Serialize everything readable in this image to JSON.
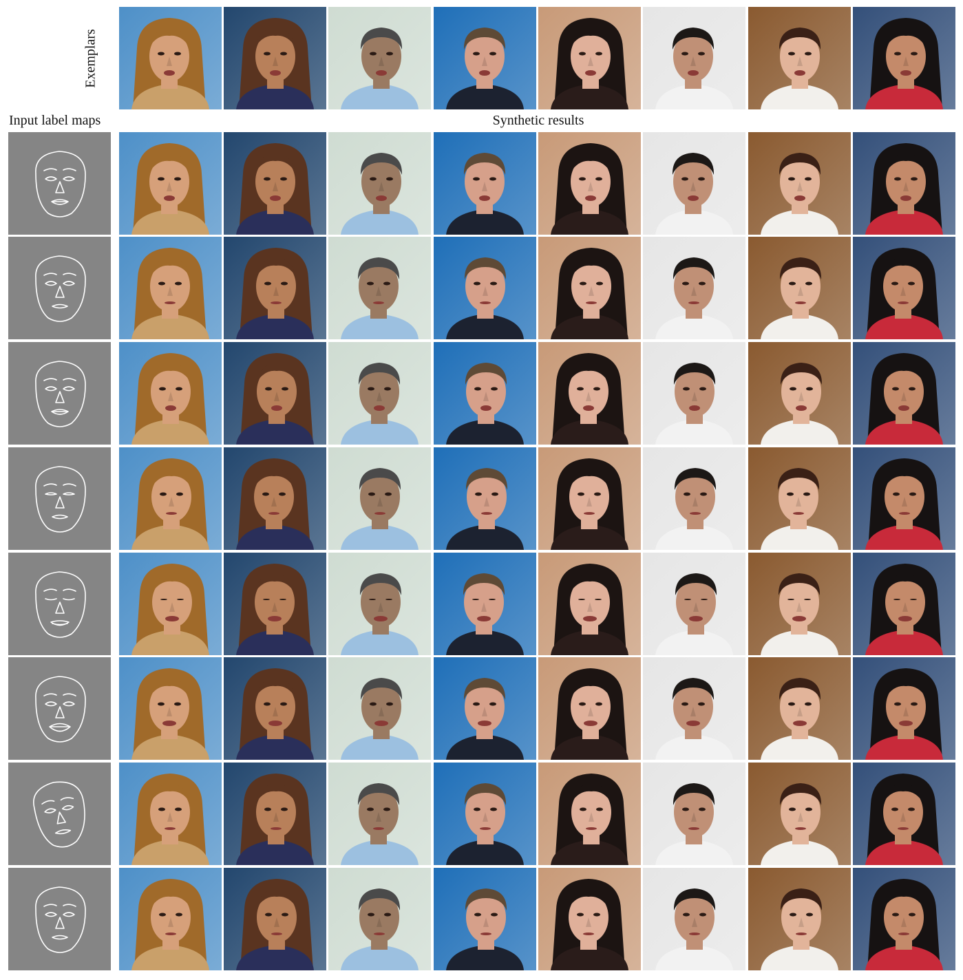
{
  "captions": {
    "exemplars": "Exemplars",
    "input_label_maps": "Input label maps",
    "synthetic_results": "Synthetic results"
  },
  "colors": {
    "label_map_background": "#858585",
    "label_map_stroke": "#ffffff",
    "figure_background": "#ffffff"
  },
  "identities": [
    {
      "id": "person-1",
      "bg": "#4e90c8",
      "skin": "#d6a07a",
      "hair": "#a06a2a",
      "clothes": "#c9a06a",
      "long_hair": true
    },
    {
      "id": "person-2",
      "bg": "#23476e",
      "skin": "#b8805a",
      "hair": "#5a3420",
      "clothes": "#2a2f5a",
      "long_hair": true
    },
    {
      "id": "person-3",
      "bg": "#cfdcd2",
      "skin": "#9a7a62",
      "hair": "#4a4a4a",
      "clothes": "#9cc0e0",
      "long_hair": false
    },
    {
      "id": "person-4",
      "bg": "#1f6fb8",
      "skin": "#d6a08a",
      "hair": "#5e4a36",
      "clothes": "#1c2230",
      "long_hair": false
    },
    {
      "id": "person-5",
      "bg": "#c89a78",
      "skin": "#e0b09a",
      "hair": "#1c1412",
      "clothes": "#2a1c1a",
      "long_hair": true
    },
    {
      "id": "person-6",
      "bg": "#e6e6e6",
      "skin": "#c09076",
      "hair": "#1c1816",
      "clothes": "#f2f2f2",
      "long_hair": false
    },
    {
      "id": "person-7",
      "bg": "#8a5a30",
      "skin": "#e2b49a",
      "hair": "#3a2016",
      "clothes": "#f2f0ec",
      "long_hair": false
    },
    {
      "id": "person-8",
      "bg": "#34507a",
      "skin": "#c48a6a",
      "hair": "#161212",
      "clothes": "#c82a3a",
      "long_hair": true
    }
  ],
  "label_map_rows": [
    {
      "mouth": "open",
      "eyes": "open",
      "tilt": 0,
      "shift": 0
    },
    {
      "mouth": "closed",
      "eyes": "open",
      "tilt": 0,
      "shift": 0
    },
    {
      "mouth": "open",
      "eyes": "open",
      "tilt": 0,
      "shift": 0
    },
    {
      "mouth": "closed",
      "eyes": "half",
      "tilt": 0,
      "shift": 0
    },
    {
      "mouth": "smile",
      "eyes": "closed",
      "tilt": 0,
      "shift": 0
    },
    {
      "mouth": "wide",
      "eyes": "open",
      "tilt": 0,
      "shift": 0
    },
    {
      "mouth": "closed",
      "eyes": "open",
      "tilt": -10,
      "shift": 0
    },
    {
      "mouth": "closed",
      "eyes": "open",
      "tilt": 0,
      "shift": 0
    }
  ]
}
